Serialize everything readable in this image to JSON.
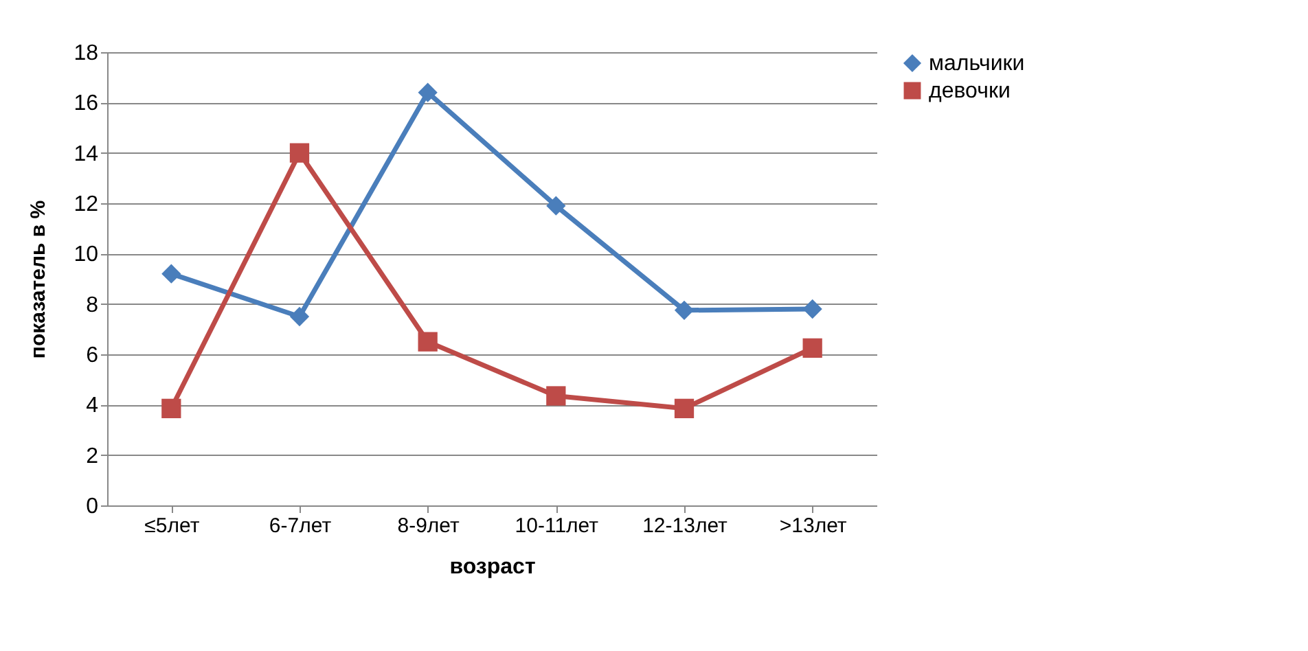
{
  "chart_data": {
    "type": "line",
    "xlabel": "возраст",
    "ylabel": "показатель в %",
    "categories": [
      "≤5лет",
      "6-7лет",
      "8-9лет",
      "10-11лет",
      "12-13лет",
      ">13лет"
    ],
    "series": [
      {
        "name": "мальчики",
        "color": "#4a7ebb",
        "marker": "diamond",
        "values": [
          9.2,
          7.5,
          16.4,
          11.9,
          7.75,
          7.8
        ]
      },
      {
        "name": "девочки",
        "color": "#be4b48",
        "marker": "square",
        "values": [
          3.85,
          14.0,
          6.5,
          4.35,
          3.85,
          6.25
        ]
      }
    ],
    "ylim": [
      0,
      18
    ],
    "yticks": [
      0,
      2,
      4,
      6,
      8,
      10,
      12,
      14,
      16,
      18
    ],
    "grid": "y",
    "legend": "right",
    "line_style": "solid"
  }
}
